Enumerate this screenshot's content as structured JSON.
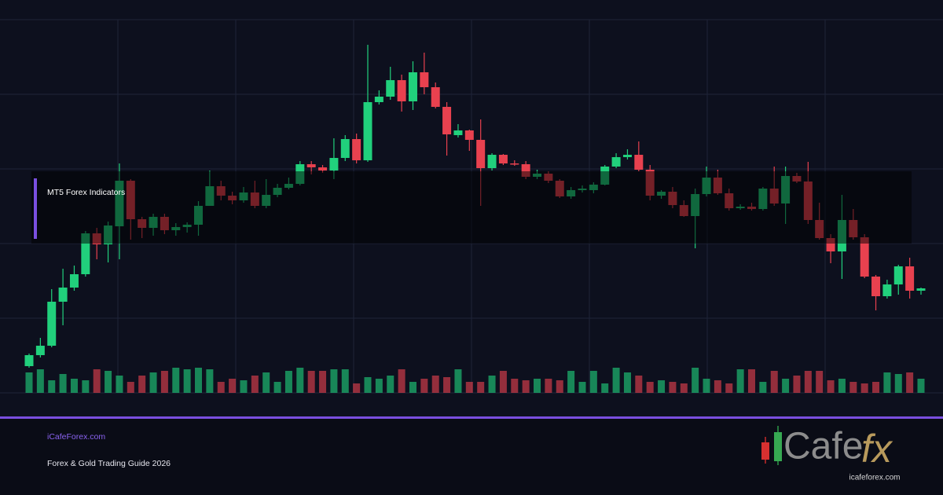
{
  "chart_data": {
    "type": "candlestick",
    "open": [
      34,
      48,
      60,
      116,
      134,
      151,
      203,
      189,
      212,
      270,
      221,
      210,
      224,
      207,
      211,
      214,
      238,
      263,
      251,
      245,
      255,
      238,
      252,
      261,
      266,
      291,
      287,
      283,
      299,
      323,
      296,
      370,
      377,
      398,
      371,
      408,
      389,
      364,
      328,
      334,
      322,
      286,
      303,
      292,
      291,
      275,
      279,
      270,
      250,
      258,
      258,
      265,
      288,
      300,
      303,
      284,
      251,
      256,
      239,
      225,
      253,
      274,
      254,
      235,
      237,
      234,
      260,
      241,
      276,
      269,
      220,
      197,
      180,
      220,
      198,
      148,
      123,
      138,
      161,
      130
    ],
    "high": [
      50,
      70,
      132,
      158,
      162,
      206,
      210,
      218,
      292,
      272,
      224,
      228,
      228,
      216,
      217,
      244,
      283,
      270,
      256,
      262,
      270,
      272,
      266,
      274,
      295,
      295,
      290,
      324,
      328,
      330,
      443,
      385,
      415,
      405,
      422,
      433,
      395,
      370,
      342,
      335,
      348,
      305,
      304,
      296,
      295,
      284,
      282,
      272,
      262,
      264,
      268,
      290,
      305,
      310,
      320,
      290,
      258,
      262,
      245,
      260,
      288,
      284,
      260,
      240,
      242,
      262,
      288,
      288,
      280,
      294,
      242,
      202,
      252,
      234,
      202,
      150,
      144,
      163,
      172,
      134
    ],
    "low": [
      32,
      45,
      58,
      86,
      130,
      148,
      170,
      166,
      170,
      195,
      197,
      200,
      202,
      200,
      204,
      200,
      238,
      245,
      240,
      242,
      235,
      235,
      249,
      259,
      264,
      278,
      280,
      272,
      295,
      292,
      294,
      367,
      373,
      358,
      360,
      380,
      362,
      302,
      325,
      308,
      238,
      283,
      290,
      289,
      272,
      272,
      267,
      248,
      247,
      255,
      254,
      264,
      286,
      297,
      282,
      245,
      247,
      235,
      224,
      184,
      250,
      252,
      232,
      233,
      232,
      232,
      238,
      215,
      267,
      215,
      195,
      165,
      145,
      195,
      146,
      105,
      120,
      125,
      120,
      125
    ],
    "close": [
      48,
      60,
      116,
      134,
      151,
      203,
      189,
      213,
      270,
      221,
      210,
      224,
      207,
      211,
      214,
      238,
      263,
      251,
      245,
      255,
      238,
      252,
      261,
      266,
      291,
      287,
      283,
      299,
      323,
      296,
      370,
      377,
      398,
      371,
      408,
      389,
      364,
      329,
      334,
      322,
      286,
      303,
      292,
      291,
      275,
      279,
      270,
      250,
      258,
      260,
      265,
      288,
      300,
      303,
      284,
      251,
      256,
      239,
      225,
      253,
      274,
      254,
      235,
      237,
      234,
      260,
      241,
      276,
      269,
      220,
      197,
      180,
      220,
      198,
      148,
      123,
      138,
      161,
      130,
      133
    ],
    "volume": [
      26,
      30,
      16,
      24,
      18,
      16,
      30,
      28,
      22,
      14,
      22,
      26,
      28,
      32,
      30,
      32,
      30,
      14,
      18,
      16,
      22,
      26,
      14,
      28,
      32,
      28,
      28,
      30,
      30,
      12,
      20,
      18,
      22,
      30,
      14,
      18,
      22,
      20,
      30,
      14,
      14,
      22,
      28,
      18,
      16,
      18,
      18,
      16,
      28,
      14,
      28,
      12,
      32,
      26,
      22,
      14,
      16,
      14,
      12,
      32,
      18,
      16,
      12,
      30,
      30,
      14,
      28,
      18,
      22,
      28,
      28,
      16,
      18,
      14,
      12,
      14,
      26,
      24,
      26,
      18
    ],
    "ylim": [
      0,
      475
    ],
    "volume_ylim": [
      0,
      35
    ],
    "up_color": "#21d07c",
    "down_color": "#e8414f",
    "grid": true
  },
  "overlay": {
    "label": "MT5 Forex Indicators"
  },
  "footer": {
    "site": "iCafeForex.com",
    "subtitle": "Forex & Gold Trading Guide 2026"
  },
  "logo": {
    "word": "Cafe",
    "mark": "fx",
    "url": "icafeforex.com"
  }
}
